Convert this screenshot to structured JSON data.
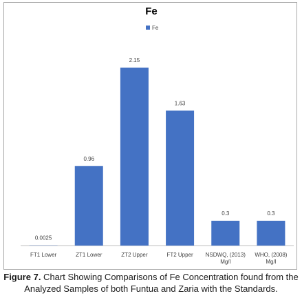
{
  "chart_data": {
    "type": "bar",
    "title": "Fe",
    "categories": [
      "FT1 Lower",
      "ZT1 Lower",
      "ZT2 Upper",
      "FT2 Upper",
      "NSDWQ, (2013) Mg/l",
      "WHO, (2008) Mg/l"
    ],
    "category_lines": [
      [
        "FT1 Lower"
      ],
      [
        "ZT1 Lower"
      ],
      [
        "ZT2 Upper"
      ],
      [
        "FT2 Upper"
      ],
      [
        "NSDWQ, (2013)",
        "Mg/l"
      ],
      [
        "WHO, (2008)",
        "Mg/l"
      ]
    ],
    "series": [
      {
        "name": "Fe",
        "values": [
          0.0025,
          0.96,
          2.15,
          1.63,
          0.3,
          0.3
        ],
        "color": "#4472c4"
      }
    ],
    "data_labels": [
      "0.0025",
      "0.96",
      "2.15",
      "1.63",
      "0.3",
      "0.3"
    ],
    "ylim": [
      0,
      2.3
    ],
    "xlabel": "",
    "ylabel": "",
    "grid": false,
    "legend": "top-center"
  },
  "caption": {
    "label": "Figure 7.",
    "text": " Chart Showing Comparisons of Fe Concentration found from the Analyzed Samples of both Funtua and Zaria with the Standards."
  }
}
